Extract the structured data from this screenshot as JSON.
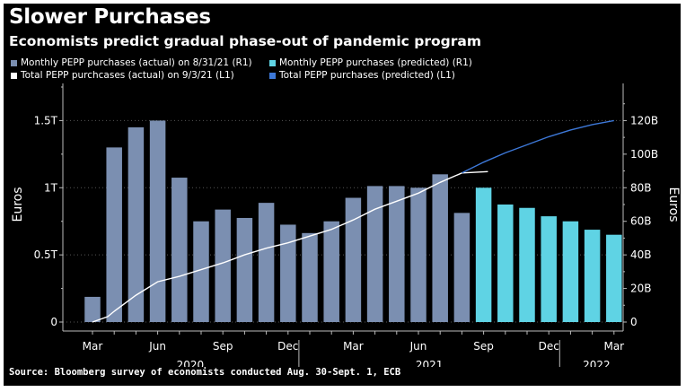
{
  "title": "Slower Purchases",
  "subtitle": "Economists predict gradual phase-out of pandemic program",
  "source": "Source: Bloomberg survey of economists conducted Aug. 30-Sept. 1, ECB",
  "legend": [
    {
      "label": "Monthly PEPP purchases (actual) on 8/31/21 (R1)",
      "color": "#7b8fb1"
    },
    {
      "label": "Monthly PEPP purchases (predicted) (R1)",
      "color": "#5fd3e4"
    },
    {
      "label": "Total PEPP purchcases (actual) on 9/3/21 (L1)",
      "color": "#ffffff"
    },
    {
      "label": "Total PEPP purchases (predicted) (L1)",
      "color": "#3d78d8"
    }
  ],
  "chart_data": {
    "type": "bar",
    "categories": [
      "Mar 2020",
      "Apr 2020",
      "May 2020",
      "Jun 2020",
      "Jul 2020",
      "Aug 2020",
      "Sep 2020",
      "Oct 2020",
      "Nov 2020",
      "Dec 2020",
      "Jan 2021",
      "Feb 2021",
      "Mar 2021",
      "Apr 2021",
      "May 2021",
      "Jun 2021",
      "Jul 2021",
      "Aug 2021",
      "Sep 2021",
      "Oct 2021",
      "Nov 2021",
      "Dec 2021",
      "Jan 2022",
      "Feb 2022",
      "Mar 2022"
    ],
    "x_tick_labels": [
      "Mar",
      "Jun",
      "Sep",
      "Dec",
      "Mar",
      "Jun",
      "Sep",
      "Dec",
      "Mar"
    ],
    "year_labels": [
      "2020",
      "2021",
      "2022"
    ],
    "left_axis": {
      "label": "Euros",
      "ticks": [
        "0",
        "0.5T",
        "1T",
        "1.5T"
      ],
      "range": [
        0,
        1.75
      ]
    },
    "right_axis": {
      "label": "Euros",
      "ticks": [
        "0",
        "20B",
        "40B",
        "60B",
        "80B",
        "100B",
        "120B"
      ],
      "range": [
        0,
        140
      ]
    },
    "series": [
      {
        "name": "Monthly PEPP purchases (actual) on 8/31/21 (R1)",
        "axis": "right",
        "kind": "bar",
        "values": [
          15,
          104,
          116,
          120,
          86,
          60,
          67,
          62,
          71,
          58,
          53,
          60,
          74,
          81,
          81,
          80,
          88,
          65,
          null,
          null,
          null,
          null,
          null,
          null,
          null
        ]
      },
      {
        "name": "Monthly PEPP purchases (predicted) (R1)",
        "axis": "right",
        "kind": "bar",
        "values": [
          null,
          null,
          null,
          null,
          null,
          null,
          null,
          null,
          null,
          null,
          null,
          null,
          null,
          null,
          null,
          null,
          null,
          null,
          80,
          70,
          68,
          63,
          60,
          55,
          52
        ]
      },
      {
        "name": "Total PEPP purchcases (actual) on 9/3/21 (L1)",
        "axis": "left",
        "kind": "line",
        "x": [
          0,
          0.7,
          1,
          2,
          3,
          4,
          5,
          6,
          7,
          8,
          9,
          10,
          11,
          12,
          13,
          14,
          15,
          16,
          17,
          18.2
        ],
        "values": [
          0,
          0.04,
          0.08,
          0.2,
          0.3,
          0.34,
          0.39,
          0.44,
          0.5,
          0.55,
          0.59,
          0.64,
          0.69,
          0.76,
          0.84,
          0.9,
          0.96,
          1.04,
          1.11,
          1.12
        ]
      },
      {
        "name": "Total PEPP purchases (predicted) (L1)",
        "axis": "left",
        "kind": "line",
        "x": [
          17,
          18,
          19,
          20,
          21,
          22,
          23,
          24
        ],
        "values": [
          1.11,
          1.19,
          1.26,
          1.32,
          1.38,
          1.43,
          1.47,
          1.5
        ]
      }
    ]
  }
}
